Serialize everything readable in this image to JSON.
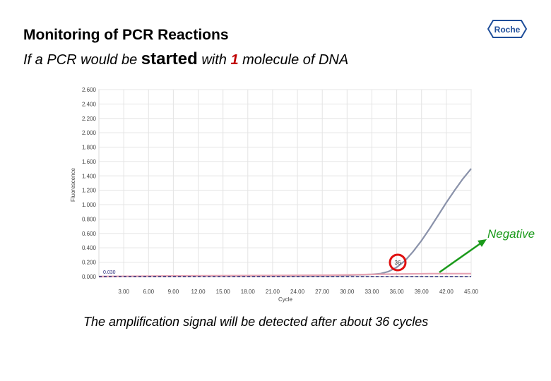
{
  "header": {
    "title": "Monitoring of PCR Reactions",
    "subtitle_part1": "If a PCR would be ",
    "subtitle_started": "started",
    "subtitle_part2": " with ",
    "subtitle_number": "1",
    "subtitle_part3": " molecule of DNA"
  },
  "logo": {
    "text": "Roche",
    "color": "#1f4e9a"
  },
  "annotations": {
    "cycle_marker": "36",
    "negative_label": "Negative",
    "caption": "The amplification signal will be detected after about 36 cycles",
    "marker_color": "#e01010",
    "arrow_color": "#1a9a1a"
  },
  "chart_data": {
    "type": "line",
    "xlabel": "Cycle",
    "ylabel": "Fluorescence",
    "xlim": [
      0,
      45
    ],
    "ylim": [
      0,
      2.6
    ],
    "xticks": [
      "3.00",
      "6.00",
      "9.00",
      "12.00",
      "15.00",
      "18.00",
      "21.00",
      "24.00",
      "27.00",
      "30.00",
      "33.00",
      "36.00",
      "39.00",
      "42.00",
      "45.00"
    ],
    "xtick_values": [
      3,
      6,
      9,
      12,
      15,
      18,
      21,
      24,
      27,
      30,
      33,
      36,
      39,
      42,
      45
    ],
    "yticks": [
      "2.600",
      "2.400",
      "2.200",
      "2.000",
      "1.800",
      "1.600",
      "1.400",
      "1.200",
      "1.000",
      "0.800",
      "0.600",
      "0.400",
      "0.200",
      "0.000"
    ],
    "ytick_values": [
      2.6,
      2.4,
      2.2,
      2.0,
      1.8,
      1.6,
      1.4,
      1.2,
      1.0,
      0.8,
      0.6,
      0.4,
      0.2,
      0.0
    ],
    "threshold_label": "0.030",
    "threshold": 0.03,
    "grid": true,
    "series": [
      {
        "color": "#8a92aa",
        "x": [
          0,
          10,
          20,
          30,
          33,
          34,
          35,
          36,
          37,
          38,
          39,
          40,
          41,
          42,
          43,
          44,
          45
        ],
        "y": [
          0.0,
          0.005,
          0.01,
          0.02,
          0.03,
          0.04,
          0.07,
          0.13,
          0.22,
          0.35,
          0.5,
          0.67,
          0.85,
          1.03,
          1.2,
          1.36,
          1.5
        ]
      },
      {
        "color": "#e6a5b4",
        "x": [
          0,
          10,
          20,
          28,
          33,
          36,
          40,
          45
        ],
        "y": [
          0.0,
          0.01,
          0.015,
          0.02,
          0.03,
          0.035,
          0.04,
          0.04
        ]
      },
      {
        "color": "#2a2a7a",
        "dashed": true,
        "x": [
          0,
          45
        ],
        "y": [
          0.0,
          0.0
        ]
      }
    ]
  }
}
